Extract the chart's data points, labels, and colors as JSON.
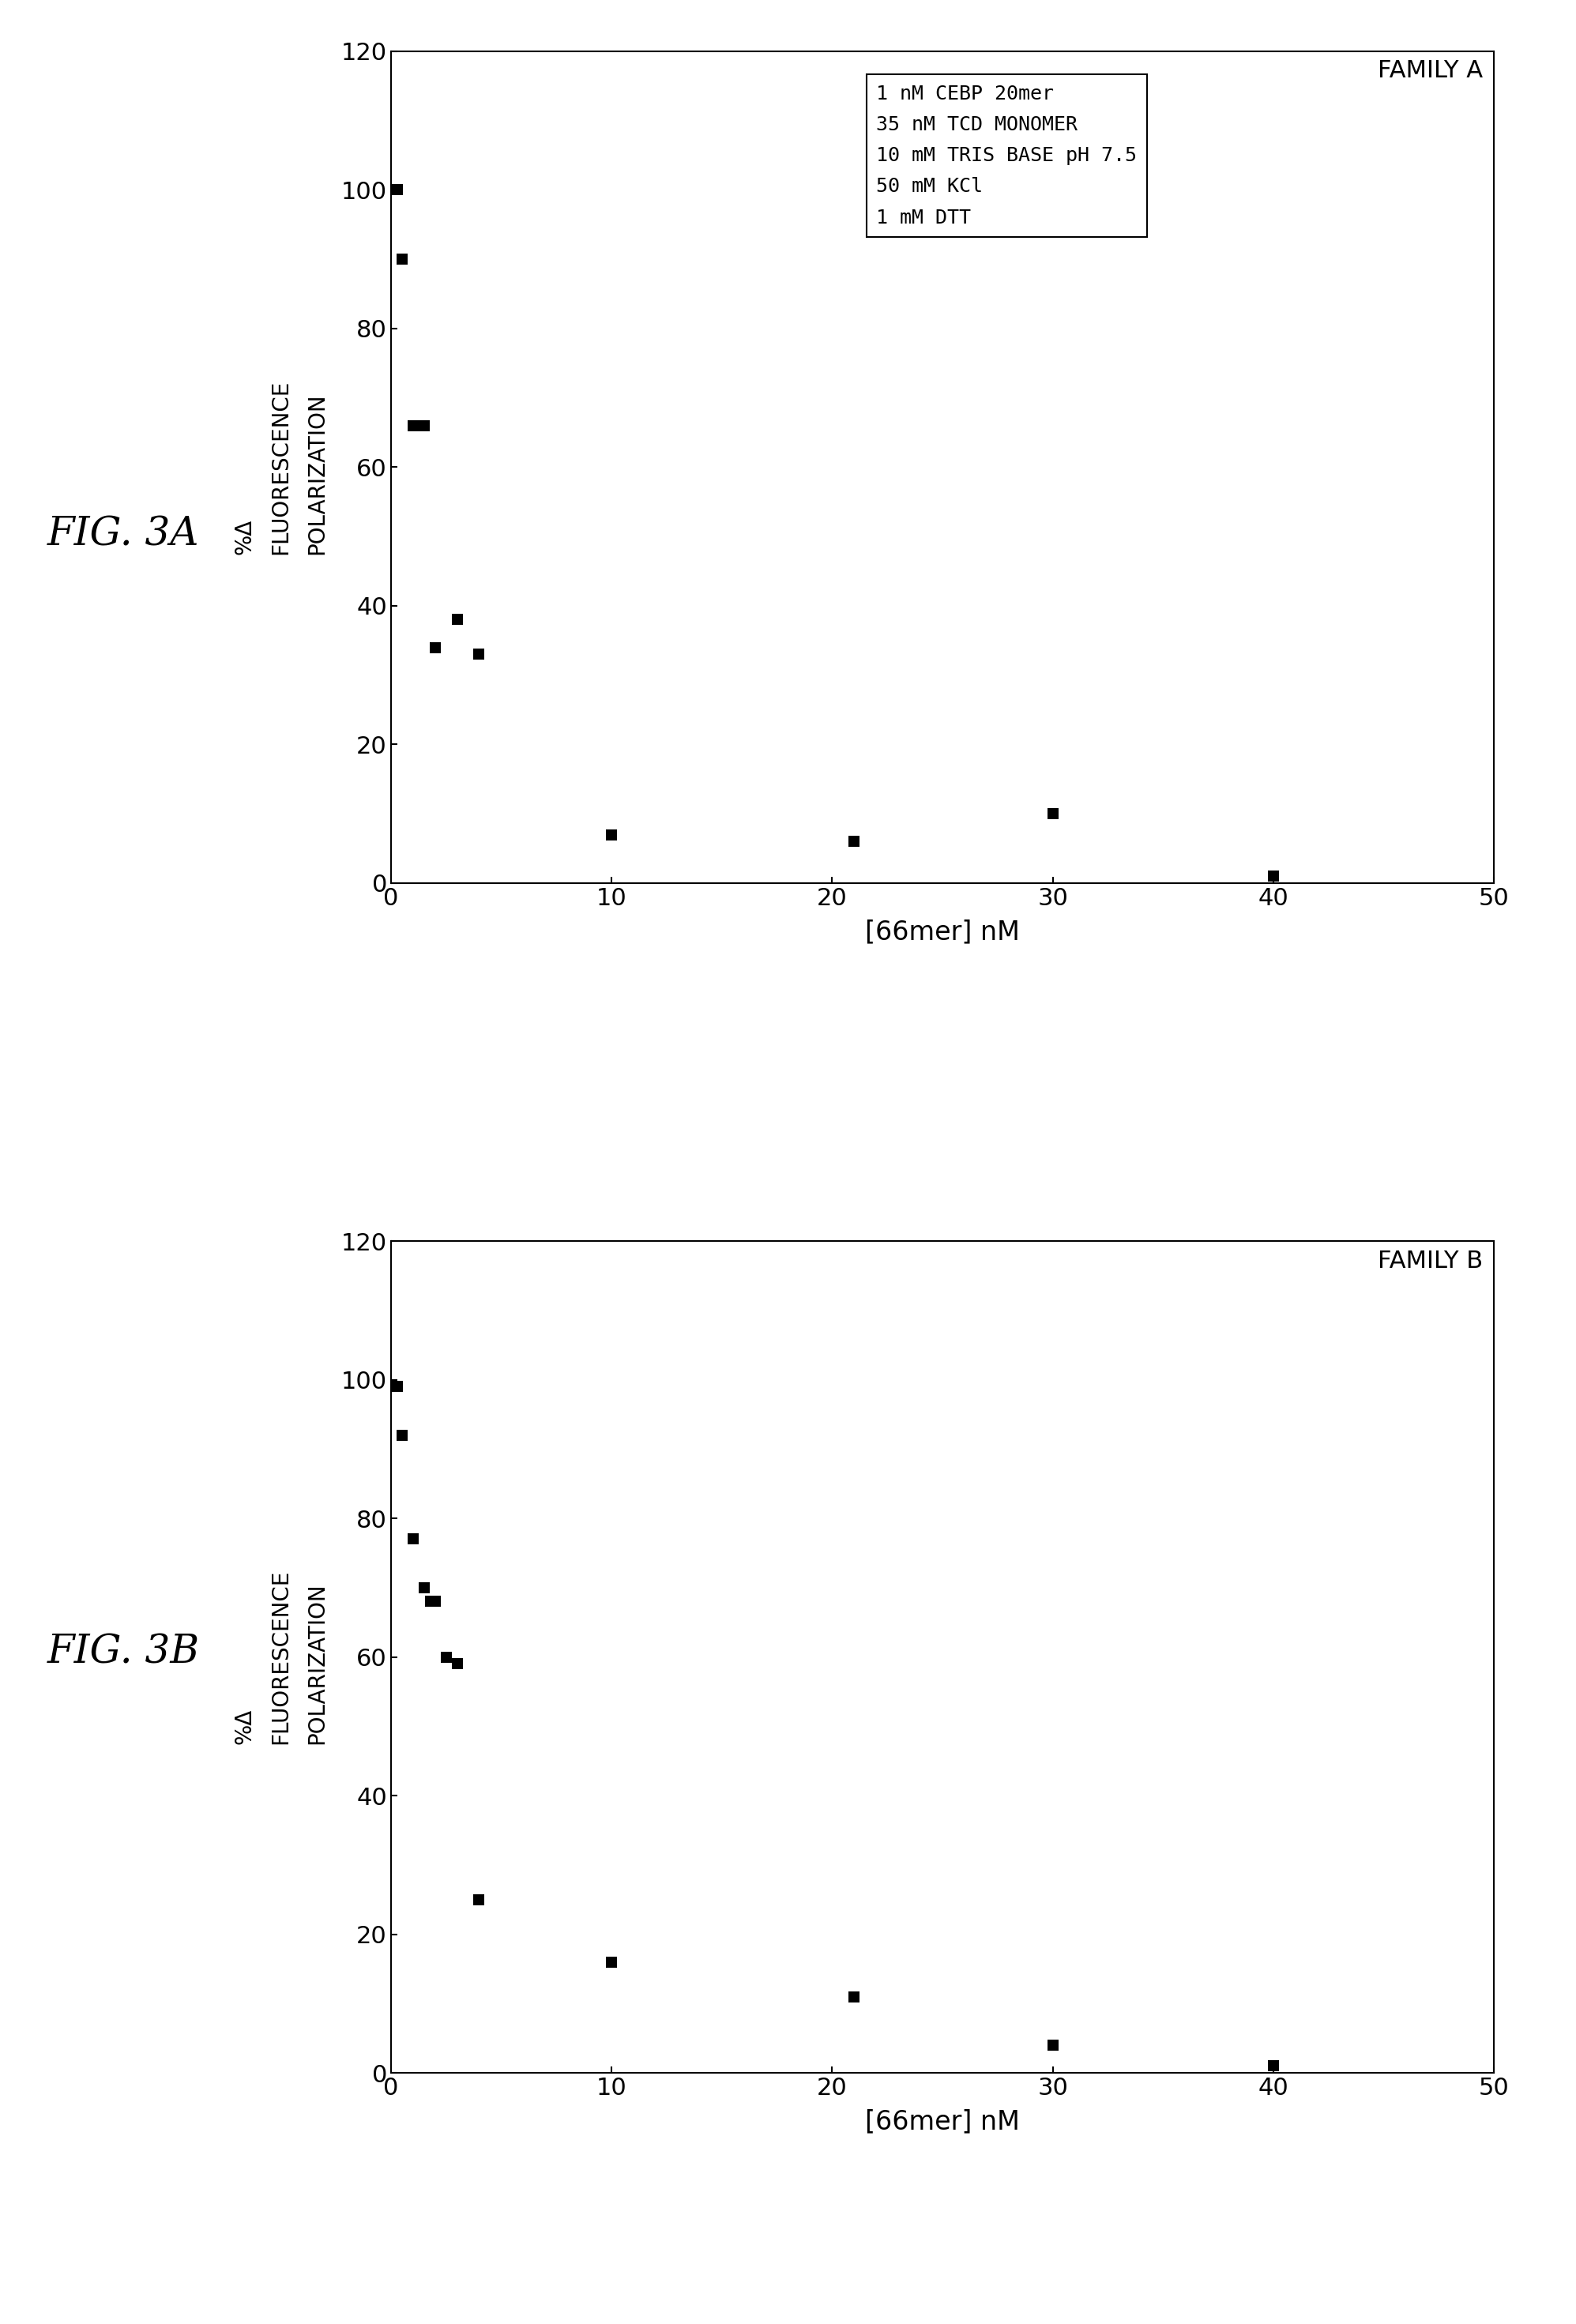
{
  "fig_a": {
    "title": "FAMILY A",
    "x": [
      0.3,
      0.5,
      1.0,
      1.5,
      2.0,
      3.0,
      4.0,
      10.0,
      21.0,
      30.0,
      40.0
    ],
    "y": [
      100,
      90,
      66,
      66,
      34,
      38,
      33,
      7,
      6,
      10,
      1
    ],
    "xlabel": "[66mer] nM",
    "ylabel": "%Δ\nFLUORESCENCE\nPOLARIZATION",
    "xlim": [
      0,
      50
    ],
    "ylim": [
      0,
      120
    ],
    "xticks": [
      0,
      10,
      20,
      30,
      40,
      50
    ],
    "yticks": [
      0,
      20,
      40,
      60,
      80,
      100,
      120
    ],
    "fig_label": "FIG. 3A",
    "legend_lines": [
      "1 nM CEBP 20mer",
      "35 nM TCD MONOMER",
      "10 mM TRIS BASE pH 7.5",
      "50 mM KCl",
      "1 mM DTT"
    ]
  },
  "fig_b": {
    "title": "FAMILY B",
    "x": [
      0.3,
      0.5,
      1.0,
      1.5,
      1.8,
      2.0,
      2.5,
      3.0,
      4.0,
      10.0,
      21.0,
      30.0,
      40.0
    ],
    "y": [
      99,
      92,
      77,
      70,
      68,
      68,
      60,
      59,
      25,
      16,
      11,
      4,
      1
    ],
    "xlabel": "[66mer] nM",
    "ylabel": "%Δ\nFLUORESCENCE\nPOLARIZATION",
    "xlim": [
      0,
      50
    ],
    "ylim": [
      0,
      120
    ],
    "xticks": [
      0,
      10,
      20,
      30,
      40,
      50
    ],
    "yticks": [
      0,
      20,
      40,
      60,
      80,
      100,
      120
    ],
    "fig_label": "FIG. 3B"
  },
  "background_color": "#ffffff",
  "marker_color": "black",
  "marker": "s",
  "marker_size": 10,
  "tick_labelsize": 22,
  "axis_labelsize": 24,
  "title_fontsize": 22,
  "ylabel_fontsize": 20,
  "figlabel_fontsize": 36,
  "legend_fontsize": 18
}
